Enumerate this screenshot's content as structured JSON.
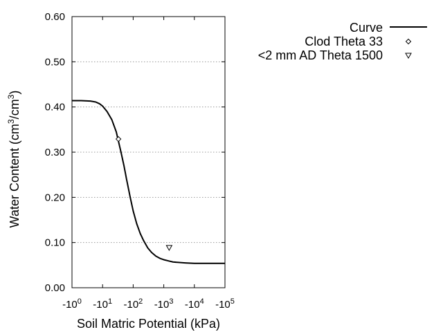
{
  "chart_data": {
    "type": "scatter",
    "xlabel": "Soil Matric Potential (kPa)",
    "ylabel_main": "Water Content (cm",
    "ylabel_sup1": "3",
    "ylabel_mid": "/cm",
    "ylabel_sup2": "3",
    "ylabel_end": ")",
    "x_scale": "log",
    "xlim": [
      1,
      100000
    ],
    "ylim": [
      0,
      0.6
    ],
    "x_ticks": [
      {
        "value": 1,
        "prefix": "-10",
        "exp": "0"
      },
      {
        "value": 10,
        "prefix": "-10",
        "exp": "1"
      },
      {
        "value": 100,
        "prefix": "-10",
        "exp": "2"
      },
      {
        "value": 1000,
        "prefix": "-10",
        "exp": "3"
      },
      {
        "value": 10000,
        "prefix": "-10",
        "exp": "4"
      },
      {
        "value": 100000,
        "prefix": "-10",
        "exp": "5"
      }
    ],
    "y_ticks": [
      {
        "value": 0.0,
        "label": "0.00"
      },
      {
        "value": 0.1,
        "label": "0.10"
      },
      {
        "value": 0.2,
        "label": "0.20"
      },
      {
        "value": 0.3,
        "label": "0.30"
      },
      {
        "value": 0.4,
        "label": "0.40"
      },
      {
        "value": 0.5,
        "label": "0.50"
      },
      {
        "value": 0.6,
        "label": "0.60"
      }
    ],
    "grid": "horizontal dotted",
    "legend_position": "top-right outside",
    "series": [
      {
        "name": "Curve",
        "kind": "line",
        "x": [
          1,
          2,
          4,
          6,
          8,
          10,
          14,
          20,
          28,
          40,
          50,
          60,
          80,
          100,
          130,
          170,
          220,
          300,
          400,
          550,
          750,
          1000,
          1500,
          2000,
          3000,
          5000,
          10000,
          30000,
          100000
        ],
        "y": [
          0.414,
          0.414,
          0.413,
          0.411,
          0.407,
          0.402,
          0.39,
          0.372,
          0.345,
          0.3,
          0.27,
          0.242,
          0.2,
          0.17,
          0.142,
          0.12,
          0.104,
          0.088,
          0.078,
          0.07,
          0.065,
          0.062,
          0.059,
          0.057,
          0.056,
          0.055,
          0.054,
          0.054,
          0.054
        ]
      },
      {
        "name": "Clod Theta 33",
        "kind": "scatter",
        "marker": "diamond",
        "x": [
          33
        ],
        "y": [
          0.329
        ]
      },
      {
        "name": "<2 mm AD Theta 1500",
        "kind": "scatter",
        "marker": "triangle-down",
        "x": [
          1500
        ],
        "y": [
          0.089
        ]
      }
    ]
  }
}
